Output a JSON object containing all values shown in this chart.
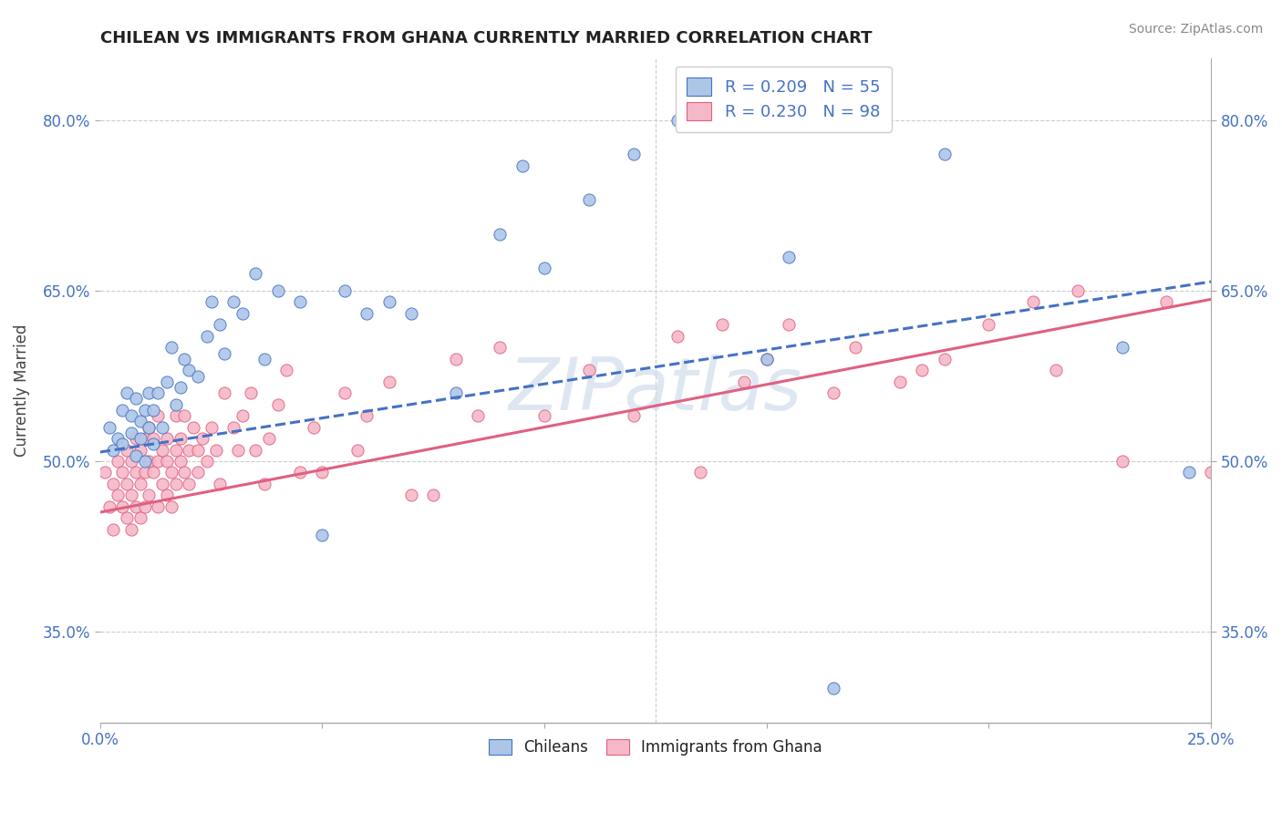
{
  "title": "CHILEAN VS IMMIGRANTS FROM GHANA CURRENTLY MARRIED CORRELATION CHART",
  "source": "Source: ZipAtlas.com",
  "ylabel": "Currently Married",
  "xlim": [
    0.0,
    0.25
  ],
  "ylim": [
    0.27,
    0.855
  ],
  "xticks": [
    0.0,
    0.05,
    0.1,
    0.15,
    0.2,
    0.25
  ],
  "xticklabels": [
    "0.0%",
    "",
    "",
    "",
    "",
    "25.0%"
  ],
  "yticks": [
    0.35,
    0.5,
    0.65,
    0.8
  ],
  "yticklabels": [
    "35.0%",
    "50.0%",
    "65.0%",
    "80.0%"
  ],
  "legend_r1": "R = 0.209   N = 55",
  "legend_r2": "R = 0.230   N = 98",
  "blue_color": "#adc6e8",
  "pink_color": "#f5b8c8",
  "blue_line_color": "#4472c4",
  "pink_line_color": "#e06080",
  "grid_color": "#cccccc",
  "watermark_color": "#c8d8e8",
  "blue_intercept": 0.508,
  "blue_slope": 0.6,
  "pink_intercept": 0.455,
  "pink_slope": 0.75,
  "chileans_x": [
    0.002,
    0.003,
    0.004,
    0.005,
    0.005,
    0.006,
    0.007,
    0.007,
    0.008,
    0.008,
    0.009,
    0.009,
    0.01,
    0.01,
    0.011,
    0.011,
    0.012,
    0.012,
    0.013,
    0.014,
    0.015,
    0.016,
    0.017,
    0.018,
    0.019,
    0.02,
    0.022,
    0.024,
    0.025,
    0.027,
    0.028,
    0.03,
    0.032,
    0.035,
    0.037,
    0.04,
    0.045,
    0.05,
    0.055,
    0.06,
    0.065,
    0.07,
    0.08,
    0.09,
    0.095,
    0.1,
    0.11,
    0.12,
    0.13,
    0.15,
    0.155,
    0.165,
    0.19,
    0.23,
    0.245
  ],
  "chileans_y": [
    0.53,
    0.51,
    0.52,
    0.515,
    0.545,
    0.56,
    0.54,
    0.525,
    0.555,
    0.505,
    0.535,
    0.52,
    0.545,
    0.5,
    0.53,
    0.56,
    0.515,
    0.545,
    0.56,
    0.53,
    0.57,
    0.6,
    0.55,
    0.565,
    0.59,
    0.58,
    0.575,
    0.61,
    0.64,
    0.62,
    0.595,
    0.64,
    0.63,
    0.665,
    0.59,
    0.65,
    0.64,
    0.435,
    0.65,
    0.63,
    0.64,
    0.63,
    0.56,
    0.7,
    0.76,
    0.67,
    0.73,
    0.77,
    0.8,
    0.59,
    0.68,
    0.3,
    0.77,
    0.6,
    0.49
  ],
  "ghana_x": [
    0.001,
    0.002,
    0.003,
    0.003,
    0.004,
    0.004,
    0.005,
    0.005,
    0.006,
    0.006,
    0.006,
    0.007,
    0.007,
    0.007,
    0.008,
    0.008,
    0.008,
    0.009,
    0.009,
    0.009,
    0.01,
    0.01,
    0.01,
    0.011,
    0.011,
    0.011,
    0.012,
    0.012,
    0.013,
    0.013,
    0.013,
    0.014,
    0.014,
    0.015,
    0.015,
    0.015,
    0.016,
    0.016,
    0.017,
    0.017,
    0.017,
    0.018,
    0.018,
    0.019,
    0.019,
    0.02,
    0.02,
    0.021,
    0.022,
    0.022,
    0.023,
    0.024,
    0.025,
    0.026,
    0.027,
    0.028,
    0.03,
    0.031,
    0.032,
    0.034,
    0.035,
    0.037,
    0.038,
    0.04,
    0.042,
    0.045,
    0.048,
    0.05,
    0.055,
    0.058,
    0.06,
    0.065,
    0.07,
    0.075,
    0.08,
    0.085,
    0.09,
    0.1,
    0.11,
    0.12,
    0.13,
    0.135,
    0.14,
    0.145,
    0.15,
    0.155,
    0.165,
    0.17,
    0.18,
    0.185,
    0.19,
    0.2,
    0.21,
    0.215,
    0.22,
    0.23,
    0.24,
    0.25
  ],
  "ghana_y": [
    0.49,
    0.46,
    0.48,
    0.44,
    0.47,
    0.5,
    0.46,
    0.49,
    0.45,
    0.48,
    0.51,
    0.47,
    0.5,
    0.44,
    0.49,
    0.46,
    0.52,
    0.48,
    0.51,
    0.45,
    0.49,
    0.52,
    0.46,
    0.5,
    0.47,
    0.53,
    0.49,
    0.52,
    0.46,
    0.5,
    0.54,
    0.48,
    0.51,
    0.5,
    0.47,
    0.52,
    0.49,
    0.46,
    0.51,
    0.54,
    0.48,
    0.52,
    0.5,
    0.49,
    0.54,
    0.51,
    0.48,
    0.53,
    0.51,
    0.49,
    0.52,
    0.5,
    0.53,
    0.51,
    0.48,
    0.56,
    0.53,
    0.51,
    0.54,
    0.56,
    0.51,
    0.48,
    0.52,
    0.55,
    0.58,
    0.49,
    0.53,
    0.49,
    0.56,
    0.51,
    0.54,
    0.57,
    0.47,
    0.47,
    0.59,
    0.54,
    0.6,
    0.54,
    0.58,
    0.54,
    0.61,
    0.49,
    0.62,
    0.57,
    0.59,
    0.62,
    0.56,
    0.6,
    0.57,
    0.58,
    0.59,
    0.62,
    0.64,
    0.58,
    0.65,
    0.5,
    0.64,
    0.49
  ]
}
